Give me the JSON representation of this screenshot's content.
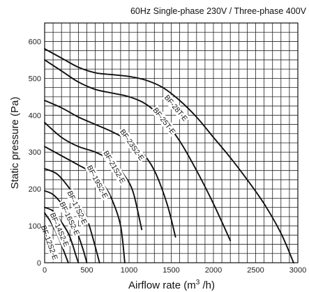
{
  "chart_data": {
    "type": "line",
    "title": "60Hz Single-phase 230V / Three-phase 400V",
    "xlabel": "Airflow rate (m",
    "xlabel_sup": "3",
    "xlabel_suffix": " /h)",
    "ylabel": "Static pressure (Pa)",
    "xlim": [
      0,
      3000
    ],
    "ylim": [
      0,
      650
    ],
    "x_ticks": [
      0,
      500,
      1000,
      1500,
      2000,
      2500,
      3000
    ],
    "y_ticks": [
      0,
      100,
      200,
      300,
      400,
      500,
      600
    ],
    "grid": true,
    "series": [
      {
        "name": "BF-12S2-E",
        "x": [
          0,
          60,
          120,
          180,
          230,
          280
        ],
        "y": [
          135,
          115,
          90,
          60,
          30,
          0
        ]
      },
      {
        "name": "BF-14S2-E",
        "x": [
          0,
          100,
          200,
          280,
          330,
          370,
          400
        ],
        "y": [
          150,
          140,
          110,
          80,
          50,
          20,
          0
        ]
      },
      {
        "name": "BF-16S2-E",
        "x": [
          0,
          100,
          200,
          300,
          380,
          450,
          500
        ],
        "y": [
          195,
          185,
          160,
          125,
          85,
          40,
          0
        ]
      },
      {
        "name": "BF-17S2-E",
        "x": [
          0,
          150,
          300,
          400,
          500,
          580,
          650
        ],
        "y": [
          255,
          240,
          200,
          165,
          120,
          60,
          0
        ]
      },
      {
        "name": "BF-19S2-E",
        "x": [
          0,
          200,
          400,
          550,
          700,
          800,
          900,
          950
        ],
        "y": [
          315,
          290,
          265,
          245,
          210,
          170,
          100,
          0
        ]
      },
      {
        "name": "BF-21S2-E",
        "x": [
          0,
          200,
          400,
          600,
          800,
          950,
          1050,
          1150
        ],
        "y": [
          380,
          340,
          315,
          300,
          275,
          235,
          190,
          90
        ]
      },
      {
        "name": "BF-23S2-E",
        "x": [
          0,
          200,
          400,
          600,
          800,
          1000,
          1150,
          1300,
          1450,
          1550
        ],
        "y": [
          440,
          420,
          395,
          375,
          355,
          330,
          300,
          250,
          160,
          70
        ]
      },
      {
        "name": "BF-25T-E",
        "x": [
          0,
          200,
          400,
          600,
          800,
          1000,
          1200,
          1400,
          1600,
          1800,
          2000,
          2200
        ],
        "y": [
          550,
          520,
          490,
          470,
          460,
          450,
          430,
          390,
          330,
          250,
          160,
          60
        ]
      },
      {
        "name": "BF-28T-E",
        "x": [
          0,
          200,
          400,
          600,
          800,
          1000,
          1200,
          1400,
          1600,
          1800,
          2000,
          2200,
          2400,
          2600,
          2800,
          2950
        ],
        "y": [
          580,
          555,
          530,
          515,
          510,
          505,
          495,
          475,
          440,
          395,
          340,
          285,
          225,
          160,
          80,
          0
        ]
      }
    ],
    "labels": [
      {
        "text": "BF-28T-E",
        "x": 1560,
        "y": 420,
        "angle": -50
      },
      {
        "text": "BF-25T-E",
        "x": 1420,
        "y": 385,
        "angle": -52
      },
      {
        "text": "BF-23S2-E",
        "x": 1040,
        "y": 320,
        "angle": -55
      },
      {
        "text": "BF-21S2-E",
        "x": 830,
        "y": 260,
        "angle": -60
      },
      {
        "text": "BF-19S2-E",
        "x": 630,
        "y": 220,
        "angle": -62
      },
      {
        "text": "BF-17S2-E",
        "x": 390,
        "y": 150,
        "angle": -64
      },
      {
        "text": "BF-16S2-E",
        "x": 300,
        "y": 120,
        "angle": -64
      },
      {
        "text": "BF-14S2-E",
        "x": 180,
        "y": 90,
        "angle": -66
      },
      {
        "text": "BF-12S2-E",
        "x": 60,
        "y": 55,
        "angle": -70
      }
    ]
  }
}
